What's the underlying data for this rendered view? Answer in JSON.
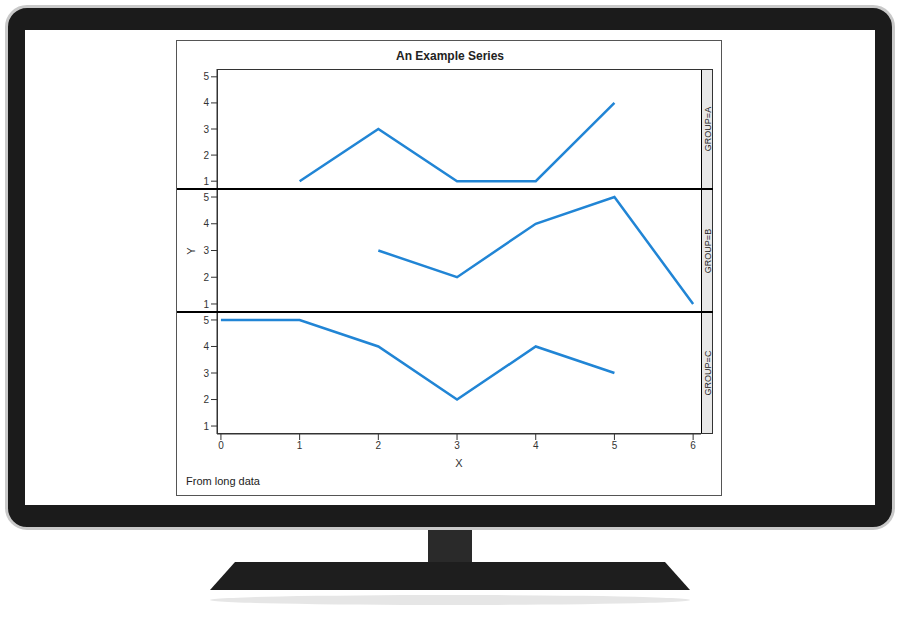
{
  "chart_data": {
    "type": "line",
    "title": "An Example Series",
    "x_label": "X",
    "y_label": "Y",
    "footnote": "From long data",
    "x": [
      0,
      1,
      2,
      3,
      4,
      5,
      6
    ],
    "xlim": [
      -0.05,
      6.1
    ],
    "xticks": [
      0,
      1,
      2,
      3,
      4,
      5,
      6
    ],
    "ylim": [
      0.7,
      5.3
    ],
    "yticks": [
      1,
      2,
      3,
      4,
      5
    ],
    "series": [
      {
        "name": "GROUP=A",
        "color": "#2185d5",
        "values": [
          null,
          1,
          3,
          1,
          1,
          4,
          null
        ]
      },
      {
        "name": "GROUP=B",
        "color": "#2185d5",
        "values": [
          null,
          null,
          3,
          2,
          4,
          5,
          1
        ]
      },
      {
        "name": "GROUP=C",
        "color": "#2185d5",
        "values": [
          5,
          5,
          4,
          2,
          4,
          3,
          null
        ]
      }
    ]
  }
}
